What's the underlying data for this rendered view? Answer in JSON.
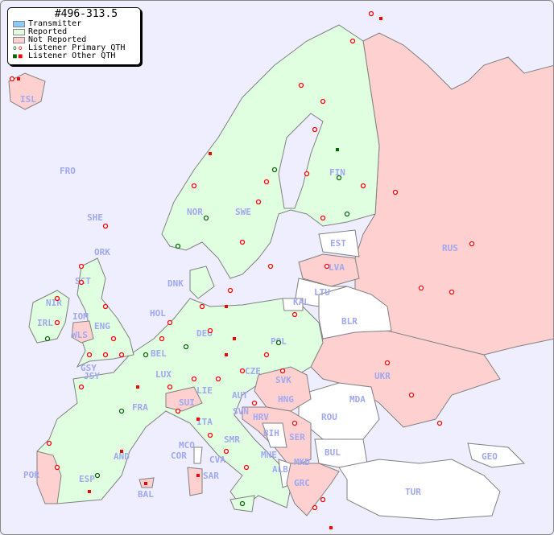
{
  "legend": {
    "title": "#496-313.5",
    "items": [
      {
        "label": "Transmitter",
        "color": "#88ccff"
      },
      {
        "label": "Reported",
        "color": "#e0ffe0"
      },
      {
        "label": "Not Reported",
        "color": "#ffd0d0"
      },
      {
        "label": "Listener Primary QTH",
        "colors": [
          "#006600",
          "#ff0000"
        ]
      },
      {
        "label": "Listener Other QTH",
        "colors": [
          "#006600",
          "#ff0000"
        ]
      }
    ]
  },
  "colors": {
    "sea": "#eeeeff",
    "reported": "#e0ffe0",
    "not_reported": "#ffd0d0",
    "no_data": "#ffffff",
    "label": "#a0a8f0"
  },
  "countries": {
    "reported": [
      "FRO",
      "SHE",
      "ORK",
      "SCT",
      "NIR",
      "IRL",
      "IOM",
      "ENG",
      "GSY",
      "JSY",
      "DNK",
      "HOL",
      "BEL",
      "LUX",
      "DEU",
      "POL",
      "CZE",
      "AUT",
      "LIE",
      "FRA",
      "ITA",
      "SVN",
      "NOR",
      "SWE",
      "FIN",
      "ESP",
      "AND",
      "MCO",
      "COR",
      "CVA",
      "SMR",
      "MNE"
    ],
    "not_reported": [
      "ISL",
      "WLS",
      "SUI",
      "SVK",
      "HNG",
      "HRV",
      "SER",
      "MKD",
      "GRC",
      "UKR",
      "LVA",
      "RUS",
      "POR",
      "SAR",
      "BAL"
    ],
    "no_data": [
      "EST",
      "LTU",
      "KAL",
      "BLR",
      "ROU",
      "MDA",
      "BUL",
      "BIH",
      "ALB",
      "TUR",
      "GEO"
    ]
  },
  "labels": {
    "ISL": "ISL",
    "FRO": "FRO",
    "SHE": "SHE",
    "ORK": "ORK",
    "SCT": "SCT",
    "NIR": "NIR",
    "IRL": "IRL",
    "IOM": "IOM",
    "ENG": "ENG",
    "WLS": "WLS",
    "GSY": "GSY",
    "JSY": "JSY",
    "DNK": "DNK",
    "HOL": "HOL",
    "BEL": "BEL",
    "LUX": "LUX",
    "DEU": "DEU",
    "POL": "POL",
    "CZE": "CZE",
    "SVK": "SVK",
    "HNG": "HNG",
    "AUT": "AUT",
    "LIE": "LIE",
    "SUI": "SUI",
    "FRA": "FRA",
    "ITA": "ITA",
    "SVN": "SVN",
    "HRV": "HRV",
    "BIH": "BIH",
    "SER": "SER",
    "MNE": "MNE",
    "ALB": "ALB",
    "MKD": "MKD",
    "GRC": "GRC",
    "BUL": "BUL",
    "ROU": "ROU",
    "MDA": "MDA",
    "UKR": "UKR",
    "BLR": "BLR",
    "LTU": "LTU",
    "KAL": "KAL",
    "LVA": "LVA",
    "EST": "EST",
    "RUS": "RUS",
    "FIN": "FIN",
    "SWE": "SWE",
    "NOR": "NOR",
    "GEO": "GEO",
    "TUR": "TUR",
    "POR": "POR",
    "ESP": "ESP",
    "AND": "AND",
    "MCO": "MCO",
    "COR": "COR",
    "SAR": "SAR",
    "BAL": "BAL",
    "CVA": "CVA",
    "SMR": "SMR"
  }
}
